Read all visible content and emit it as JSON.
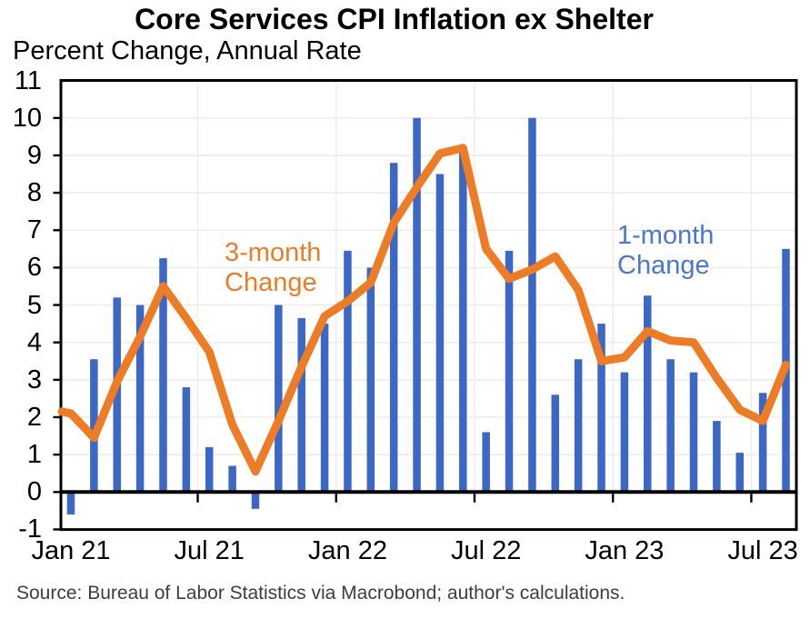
{
  "source_note": "Source: Bureau of Labor Statistics via Macrobond; author's calculations.",
  "colors": {
    "bar_blue": "#3a68c4",
    "line_orange": "#ee7c24",
    "bar_label_blue": "#4878d0",
    "line_label_orange": "#ee7c24",
    "gridline": "#f2ebe8",
    "axis": "#000000",
    "source_text": "#3d3d3d"
  },
  "chart_data": {
    "type": "bar",
    "title": "Core Services CPI Inflation ex Shelter",
    "ylabel": "Percent Change, Annual Rate",
    "x": [
      "Jan 21",
      "Feb 21",
      "Mar 21",
      "Apr 21",
      "May 21",
      "Jun 21",
      "Jul 21",
      "Aug 21",
      "Sep 21",
      "Oct 21",
      "Nov 21",
      "Dec 21",
      "Jan 22",
      "Feb 22",
      "Mar 22",
      "Apr 22",
      "May 22",
      "Jun 22",
      "Jul 22",
      "Aug 22",
      "Sep 22",
      "Oct 22",
      "Nov 22",
      "Dec 22",
      "Jan 23",
      "Feb 23",
      "Mar 23",
      "Apr 23",
      "May 23",
      "Jun 23",
      "Jul 23",
      "Aug 23"
    ],
    "series": [
      {
        "name": "1-month Change",
        "type": "bar",
        "color": "#3a68c4",
        "values": [
          -0.6,
          3.55,
          5.2,
          5.0,
          6.25,
          2.8,
          1.2,
          0.7,
          -0.45,
          5.0,
          4.65,
          4.5,
          6.45,
          6.0,
          8.8,
          10.0,
          8.5,
          9.1,
          1.6,
          6.45,
          10.0,
          2.6,
          3.55,
          4.5,
          3.2,
          5.25,
          3.55,
          3.2,
          1.9,
          1.05,
          2.65,
          6.5
        ]
      },
      {
        "name": "3-month Change",
        "type": "line",
        "color": "#ee7c24",
        "edge_start_value": 2.15,
        "values": [
          2.1,
          1.45,
          2.95,
          4.15,
          5.5,
          4.65,
          3.75,
          1.8,
          0.55,
          1.9,
          3.35,
          4.7,
          5.1,
          5.6,
          7.2,
          8.15,
          9.05,
          9.2,
          6.5,
          5.7,
          5.95,
          6.3,
          5.4,
          3.5,
          3.6,
          4.3,
          4.05,
          4.0,
          3.05,
          2.2,
          1.9,
          3.4
        ]
      }
    ],
    "ylim": [
      -1,
      11
    ],
    "yticks": [
      11,
      10,
      9,
      8,
      7,
      6,
      5,
      4,
      3,
      2,
      1,
      0,
      -1
    ],
    "xticks": {
      "labels": [
        "Jan 21",
        "Jul 21",
        "Jan 22",
        "Jul 22",
        "Jan 23",
        "Jul 23"
      ],
      "month_indices": [
        0,
        6,
        12,
        18,
        24,
        30
      ]
    },
    "grid": "faint horizontal gridlines at each integer; faint vertical gridlines at Jan/Jul ticks",
    "legend_position": "none (labeled by in-plot text annotations)",
    "annotations": [
      {
        "line1": "3-month",
        "line2": "Change",
        "series": "3-month Change",
        "color": "#ee7c24"
      },
      {
        "line1": "1-month",
        "line2": "Change",
        "series": "1-month Change",
        "color": "#4878d0"
      }
    ]
  }
}
